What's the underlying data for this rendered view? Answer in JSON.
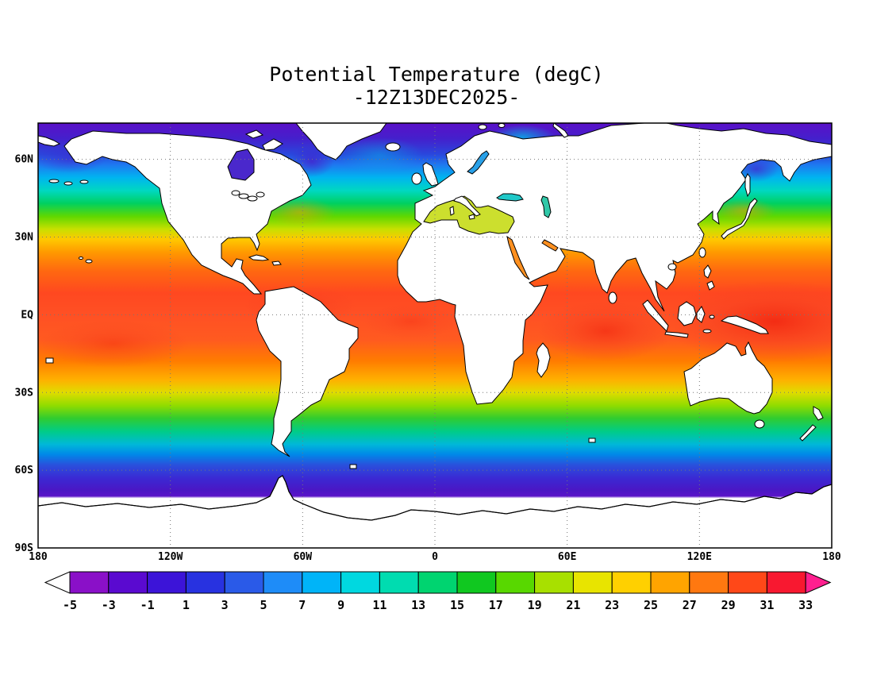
{
  "title": {
    "line1": "Potential Temperature (degC)",
    "line2": "-12Z13DEC2025-"
  },
  "axes": {
    "lat_ticks": [
      {
        "label": "60N",
        "lat": 60
      },
      {
        "label": "30N",
        "lat": 30
      },
      {
        "label": "EQ",
        "lat": 0
      },
      {
        "label": "30S",
        "lat": -30
      },
      {
        "label": "60S",
        "lat": -60
      },
      {
        "label": "90S",
        "lat": -90
      }
    ],
    "lon_ticks": [
      {
        "label": "180",
        "lon": -180
      },
      {
        "label": "120W",
        "lon": -120
      },
      {
        "label": "60W",
        "lon": -60
      },
      {
        "label": "0",
        "lon": 0
      },
      {
        "label": "60E",
        "lon": 60
      },
      {
        "label": "120E",
        "lon": 120
      },
      {
        "label": "180",
        "lon": 180
      }
    ],
    "grid_lats": [
      60,
      30,
      0,
      -30,
      -60
    ],
    "grid_lons": [
      -120,
      -60,
      0,
      60,
      120
    ]
  },
  "colorbar": {
    "levels": [
      -5,
      -3,
      -1,
      1,
      3,
      5,
      7,
      9,
      11,
      13,
      15,
      17,
      19,
      21,
      23,
      25,
      27,
      29,
      31,
      33
    ],
    "colors": [
      "#8a10c8",
      "#5a0ad0",
      "#3c14d8",
      "#2832e0",
      "#2a5ae8",
      "#1e8cf8",
      "#00b4f8",
      "#00d8e0",
      "#00dcb0",
      "#00d470",
      "#10c820",
      "#58d800",
      "#a8e000",
      "#e8e400",
      "#ffd000",
      "#ffa400",
      "#ff7810",
      "#ff4818",
      "#f81830"
    ],
    "below_color": "#ffffff",
    "above_color": "#ff1f8f"
  },
  "chart_data": {
    "type": "heatmap",
    "subtype": "filled-contour-world-map",
    "title": "Potential Temperature (degC)",
    "valid_time": "12Z13DEC2025",
    "units": "degC",
    "projection": "equirectangular",
    "lon_range": [
      -180,
      180
    ],
    "lat_range": [
      -90,
      74
    ],
    "contour_interval": 2,
    "levels": [
      -5,
      -3,
      -1,
      1,
      3,
      5,
      7,
      9,
      11,
      13,
      15,
      17,
      19,
      21,
      23,
      25,
      27,
      29,
      31,
      33
    ],
    "palette": [
      "#8a10c8",
      "#5a0ad0",
      "#3c14d8",
      "#2832e0",
      "#2a5ae8",
      "#1e8cf8",
      "#00b4f8",
      "#00d8e0",
      "#00dcb0",
      "#00d470",
      "#10c820",
      "#58d800",
      "#a8e000",
      "#e8e400",
      "#ffd000",
      "#ffa400",
      "#ff7810",
      "#ff4818",
      "#f81830"
    ],
    "zonal_mean_profile": {
      "lats": [
        72,
        65,
        60,
        55,
        50,
        45,
        40,
        35,
        30,
        25,
        20,
        10,
        0,
        -10,
        -20,
        -25,
        -30,
        -35,
        -40,
        -45,
        -50,
        -55,
        -60,
        -65,
        -70
      ],
      "temps": [
        -1,
        1,
        4,
        7,
        10,
        13,
        16,
        19,
        22,
        25,
        27,
        28,
        28.5,
        28,
        26,
        24,
        21,
        18,
        14,
        11,
        8,
        5,
        2,
        0,
        -1.5
      ]
    },
    "features": [
      "warm pool >29C in western tropical Pacific and eastern Indian Ocean",
      "zonal banding from <-5C polar water to >31C equatorial water",
      "white mask over land and Antarctic sea-ice zone",
      "cold purple water in Hudson Bay, Baffin Bay, Sea of Okhotsk and Southern Ocean"
    ],
    "legend_position": "bottom",
    "grid": "dotted, 30 degree spacing"
  }
}
